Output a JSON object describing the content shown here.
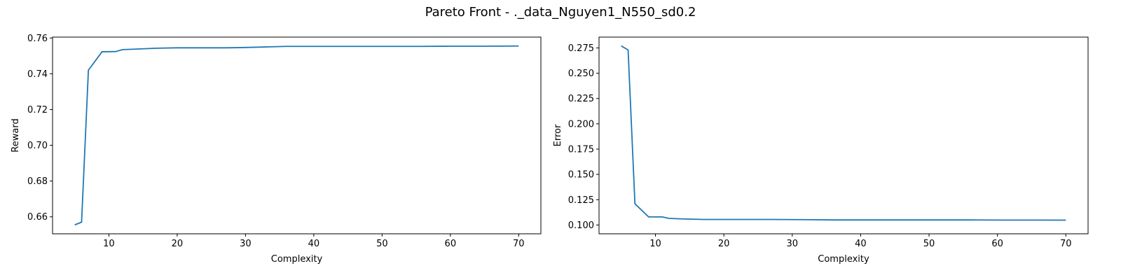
{
  "figure": {
    "title": "Pareto Front - ._data_Nguyen1_N550_sd0.2"
  },
  "chart_data": [
    {
      "type": "line",
      "title": "",
      "xlabel": "Complexity",
      "ylabel": "Reward",
      "xlim": [
        1.75,
        73.25
      ],
      "ylim": [
        0.6505,
        0.7605
      ],
      "xticks": [
        10,
        20,
        30,
        40,
        50,
        60,
        70
      ],
      "yticks": [
        0.66,
        0.68,
        0.7,
        0.72,
        0.74,
        0.76
      ],
      "ytick_decimals": 2,
      "grid": false,
      "color": "#1f77b4",
      "series": [
        {
          "x": [
            5,
            6,
            7,
            9,
            11,
            12,
            14,
            17,
            20,
            27,
            29,
            31,
            33,
            36,
            40,
            50,
            56,
            60,
            65,
            70
          ],
          "y": [
            0.6555,
            0.657,
            0.742,
            0.7523,
            0.7524,
            0.7535,
            0.7538,
            0.7543,
            0.7545,
            0.7545,
            0.7546,
            0.7548,
            0.755,
            0.7553,
            0.7553,
            0.7553,
            0.7553,
            0.7554,
            0.7554,
            0.7555
          ]
        }
      ]
    },
    {
      "type": "line",
      "title": "",
      "xlabel": "Complexity",
      "ylabel": "Error",
      "xlim": [
        1.75,
        73.25
      ],
      "ylim": [
        0.0913,
        0.2857
      ],
      "xticks": [
        10,
        20,
        30,
        40,
        50,
        60,
        70
      ],
      "yticks": [
        0.1,
        0.125,
        0.15,
        0.175,
        0.2,
        0.225,
        0.25,
        0.275
      ],
      "ytick_decimals": 3,
      "grid": false,
      "color": "#1f77b4",
      "series": [
        {
          "x": [
            5,
            6,
            7,
            9,
            11,
            12,
            14,
            17,
            20,
            27,
            29,
            31,
            33,
            36,
            40,
            50,
            56,
            60,
            65,
            70
          ],
          "y": [
            0.277,
            0.273,
            0.121,
            0.108,
            0.108,
            0.1065,
            0.106,
            0.1055,
            0.1055,
            0.1055,
            0.1054,
            0.1053,
            0.1052,
            0.105,
            0.105,
            0.105,
            0.105,
            0.1049,
            0.1049,
            0.1048
          ]
        }
      ]
    }
  ]
}
